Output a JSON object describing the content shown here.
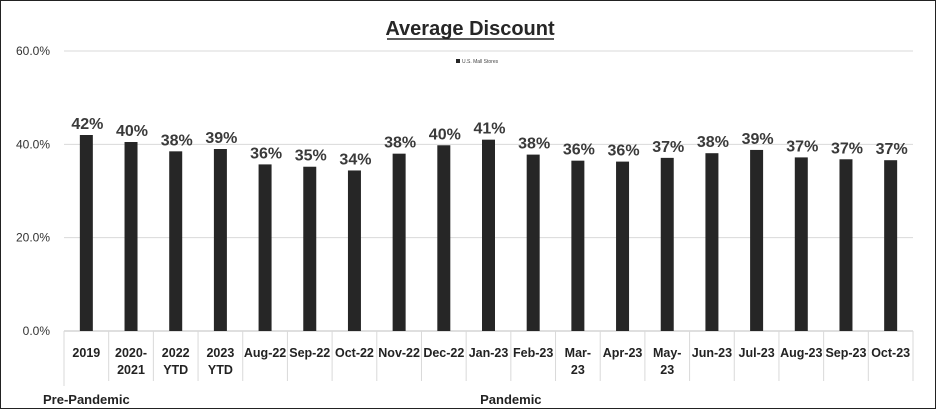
{
  "chart_data": {
    "type": "bar",
    "title": "Average Discount",
    "legend": {
      "entries": [
        "U.S. Mall Stores"
      ],
      "position": "top-center"
    },
    "categories": [
      [
        "2019"
      ],
      [
        "2020-",
        "2021"
      ],
      [
        "2022",
        "YTD"
      ],
      [
        "2023",
        "YTD"
      ],
      [
        "Aug-22"
      ],
      [
        "Sep-22"
      ],
      [
        "Oct-22"
      ],
      [
        "Nov-22"
      ],
      [
        "Dec-22"
      ],
      [
        "Jan-23"
      ],
      [
        "Feb-23"
      ],
      [
        "Mar-",
        "23"
      ],
      [
        "Apr-23"
      ],
      [
        "May-",
        "23"
      ],
      [
        "Jun-23"
      ],
      [
        "Jul-23"
      ],
      [
        "Aug-23"
      ],
      [
        "Sep-23"
      ],
      [
        "Oct-23"
      ]
    ],
    "series": [
      {
        "name": "U.S. Mall Stores",
        "color": "#262626",
        "values": [
          0.42,
          0.405,
          0.385,
          0.39,
          0.357,
          0.352,
          0.344,
          0.38,
          0.398,
          0.41,
          0.378,
          0.365,
          0.363,
          0.371,
          0.381,
          0.388,
          0.372,
          0.368,
          0.366
        ],
        "data_labels": [
          "42%",
          "40%",
          "38%",
          "39%",
          "36%",
          "35%",
          "34%",
          "38%",
          "40%",
          "41%",
          "38%",
          "36%",
          "36%",
          "37%",
          "38%",
          "39%",
          "37%",
          "37%",
          "37%"
        ]
      }
    ],
    "yticks": [
      "0.0%",
      "20.0%",
      "40.0%",
      "60.0%"
    ],
    "ylim": [
      0,
      0.6
    ],
    "grid": true,
    "groups": [
      {
        "label": "Pre-Pandemic",
        "from": 0,
        "to": 0
      },
      {
        "label": "Pandemic",
        "from": 1,
        "to": 18
      }
    ]
  }
}
